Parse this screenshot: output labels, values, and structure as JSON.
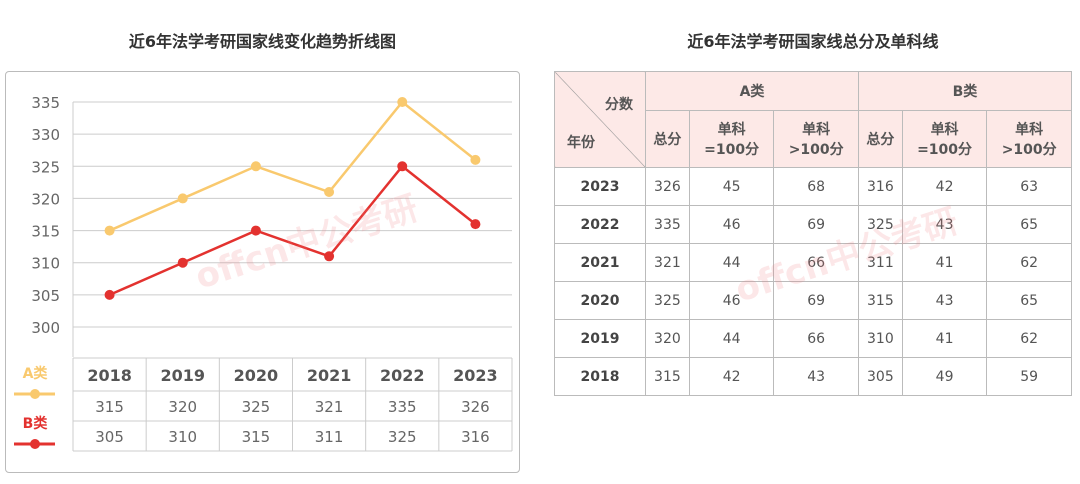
{
  "left_title": "近6年法学考研国家线变化趋势折线图",
  "right_title": "近6年法学考研国家线总分及单科线",
  "watermark": "offcn中公考研",
  "chart_data": {
    "type": "line",
    "title": "近6年法学考研国家线变化趋势折线图",
    "categories": [
      "2018",
      "2019",
      "2020",
      "2021",
      "2022",
      "2023"
    ],
    "ylim": [
      300,
      335
    ],
    "yticks": [
      "300",
      "305",
      "310",
      "315",
      "320",
      "325",
      "330",
      "335"
    ],
    "grid": true,
    "legend_placement": "bottom-left",
    "series": [
      {
        "name": "A类",
        "values": [
          315,
          320,
          325,
          321,
          335,
          326
        ],
        "color": "#f9c96e"
      },
      {
        "name": "B类",
        "values": [
          305,
          310,
          315,
          311,
          325,
          316
        ],
        "color": "#e3322f"
      }
    ]
  },
  "table": {
    "corner_top": "分数",
    "corner_bottom": "年份",
    "groups": [
      "A类",
      "B类"
    ],
    "sub": [
      [
        "总分"
      ],
      [
        "单科",
        "=100分"
      ],
      [
        "单科",
        ">100分"
      ],
      [
        "总分"
      ],
      [
        "单科",
        "=100分"
      ],
      [
        "单科",
        ">100分"
      ]
    ],
    "rows": [
      [
        "2023",
        "326",
        "45",
        "68",
        "316",
        "42",
        "63"
      ],
      [
        "2022",
        "335",
        "46",
        "69",
        "325",
        "43",
        "65"
      ],
      [
        "2021",
        "321",
        "44",
        "66",
        "311",
        "41",
        "62"
      ],
      [
        "2020",
        "325",
        "46",
        "69",
        "315",
        "43",
        "65"
      ],
      [
        "2019",
        "320",
        "44",
        "66",
        "310",
        "41",
        "62"
      ],
      [
        "2018",
        "315",
        "42",
        "43",
        "305",
        "49",
        "59"
      ]
    ]
  }
}
